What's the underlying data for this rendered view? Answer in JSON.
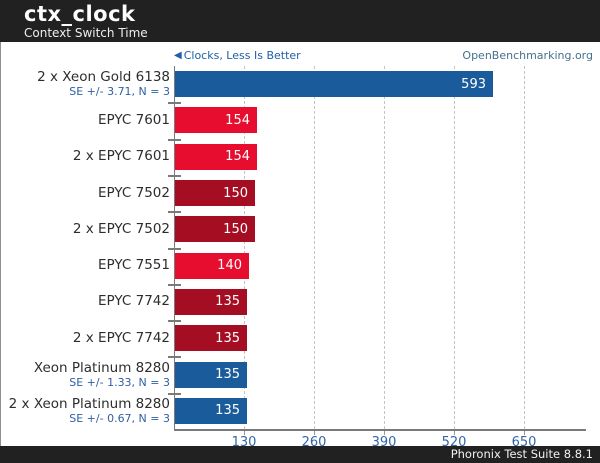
{
  "header": {
    "title": "ctx_clock",
    "subtitle": "Context Switch Time"
  },
  "annotations": {
    "left_note": "Clocks, Less Is Better",
    "left_arrow_icon": "◀",
    "right_link": "OpenBenchmarking.org"
  },
  "footer": {
    "text": "Phoronix Test Suite 8.8.1"
  },
  "colors": {
    "blue": "#1a5b9c",
    "red": "#e60d2e",
    "dark_red": "#a50d23",
    "se_text": "#2e5fa3",
    "tick_text": "#3465a4",
    "note_text": "#1d5fa6",
    "link_text": "#44718e",
    "header_bg": "#212121"
  },
  "chart_data": {
    "type": "bar",
    "orientation": "horizontal",
    "title": "ctx_clock",
    "subtitle": "Context Switch Time",
    "value_note": "Clocks, Less Is Better",
    "xlabel": "",
    "ylabel": "",
    "xlim": [
      0,
      765
    ],
    "grid": "dashed-vertical",
    "x_ticks": [
      130,
      260,
      390,
      520,
      650
    ],
    "series": [
      {
        "label": "2 x Xeon Gold 6138",
        "se": "SE +/- 3.71, N = 3",
        "value": 593,
        "color": "blue"
      },
      {
        "label": "EPYC 7601",
        "se": "",
        "value": 154,
        "color": "red"
      },
      {
        "label": "2 x EPYC 7601",
        "se": "",
        "value": 154,
        "color": "red"
      },
      {
        "label": "EPYC 7502",
        "se": "",
        "value": 150,
        "color": "dark_red"
      },
      {
        "label": "2 x EPYC 7502",
        "se": "",
        "value": 150,
        "color": "dark_red"
      },
      {
        "label": "EPYC 7551",
        "se": "",
        "value": 140,
        "color": "red"
      },
      {
        "label": "EPYC 7742",
        "se": "",
        "value": 135,
        "color": "dark_red"
      },
      {
        "label": "2 x EPYC 7742",
        "se": "",
        "value": 135,
        "color": "dark_red"
      },
      {
        "label": "Xeon Platinum 8280",
        "se": "SE +/- 1.33, N = 3",
        "value": 135,
        "color": "blue"
      },
      {
        "label": "2 x Xeon Platinum 8280",
        "se": "SE +/- 0.67, N = 3",
        "value": 135,
        "color": "blue"
      }
    ]
  }
}
